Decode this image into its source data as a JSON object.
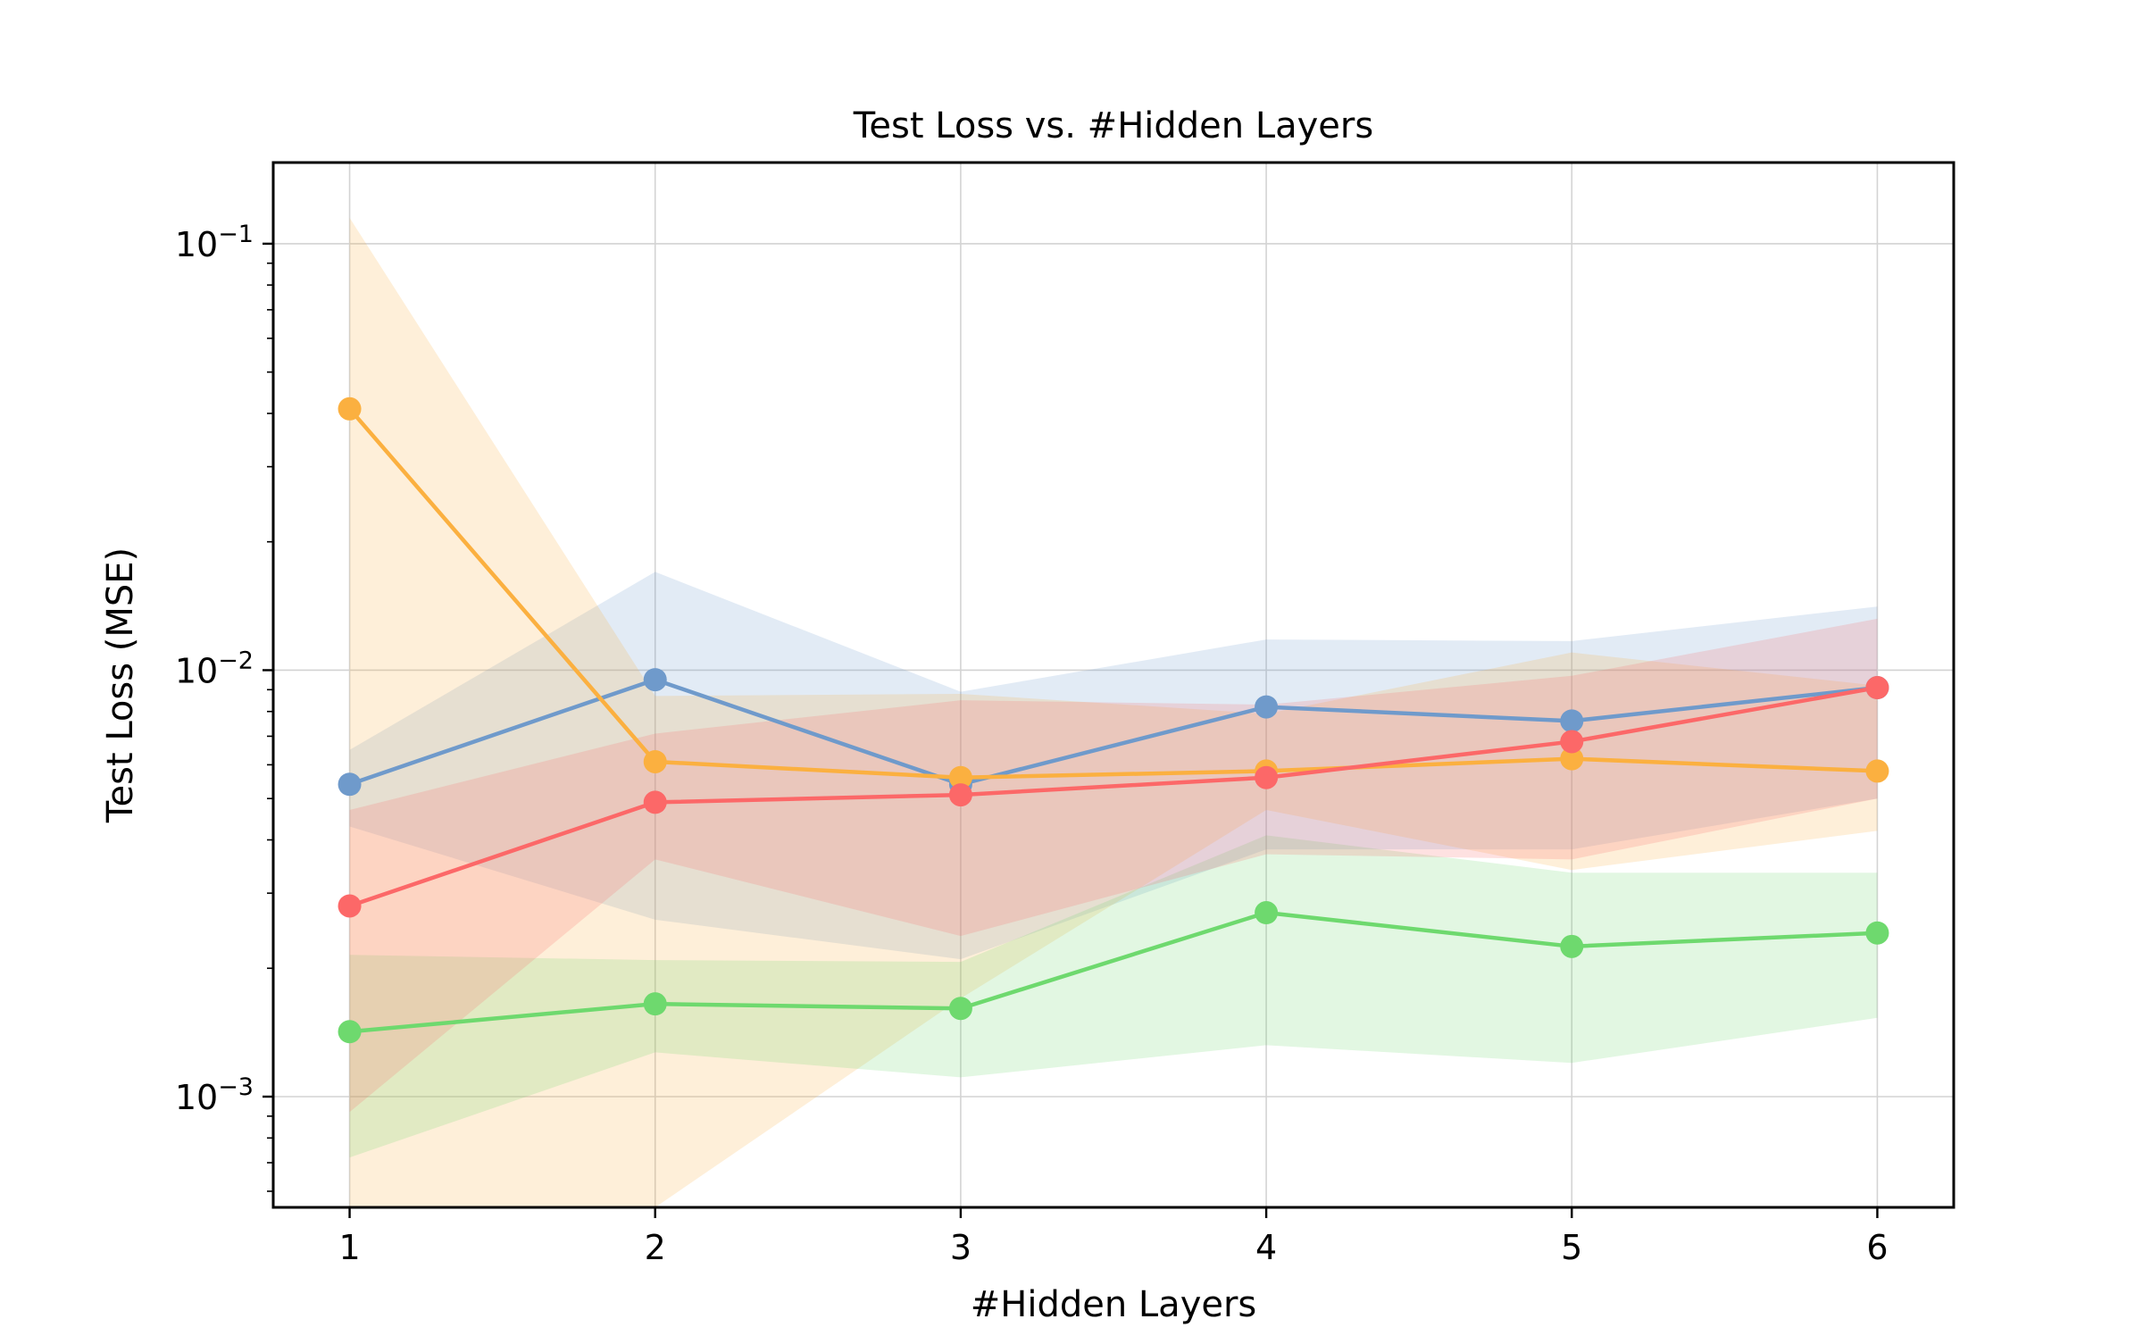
{
  "chart_data": {
    "type": "line",
    "title": "Test Loss vs. #Hidden Layers",
    "xlabel": "#Hidden Layers",
    "ylabel": "Test Loss (MSE)",
    "yscale": "log",
    "xlim": [
      0.75,
      6.25
    ],
    "ylim": [
      0.00055,
      0.155
    ],
    "x": [
      1,
      2,
      3,
      4,
      5,
      6
    ],
    "x_tick_labels": [
      "1",
      "2",
      "3",
      "4",
      "5",
      "6"
    ],
    "y_ticks": [
      {
        "value": 0.001,
        "base": "10",
        "exp": "−3"
      },
      {
        "value": 0.01,
        "base": "10",
        "exp": "−2"
      },
      {
        "value": 0.1,
        "base": "10",
        "exp": "−1"
      }
    ],
    "grid": true,
    "series": [
      {
        "color": "#6f9acb",
        "values": [
          0.0054,
          0.0095,
          0.0054,
          0.0082,
          0.0076,
          0.0091
        ],
        "band_low": [
          0.0043,
          0.0026,
          0.0021,
          0.0038,
          0.0038,
          0.005
        ],
        "band_high": [
          0.0065,
          0.017,
          0.0089,
          0.0118,
          0.0117,
          0.0141
        ]
      },
      {
        "color": "#fbb040",
        "values": [
          0.041,
          0.0061,
          0.0056,
          0.0058,
          0.0062,
          0.0058
        ],
        "band_low": [
          0.0004,
          0.0004,
          0.0017,
          0.0047,
          0.0034,
          0.0042
        ],
        "band_high": [
          0.115,
          0.0087,
          0.0088,
          0.0079,
          0.011,
          0.0092
        ]
      },
      {
        "color": "#6ed96e",
        "values": [
          0.00142,
          0.00165,
          0.00161,
          0.0027,
          0.00225,
          0.00242
        ],
        "band_low": [
          0.00072,
          0.00127,
          0.00111,
          0.00132,
          0.0012,
          0.00153
        ],
        "band_high": [
          0.00215,
          0.00209,
          0.00207,
          0.0041,
          0.00335,
          0.00335
        ]
      },
      {
        "color": "#fc6868",
        "values": [
          0.0028,
          0.0049,
          0.0051,
          0.0056,
          0.0068,
          0.0091
        ],
        "band_low": [
          0.00092,
          0.0036,
          0.00238,
          0.0037,
          0.0036,
          0.005
        ],
        "band_high": [
          0.0047,
          0.0071,
          0.0085,
          0.0083,
          0.0097,
          0.0132
        ]
      }
    ]
  }
}
